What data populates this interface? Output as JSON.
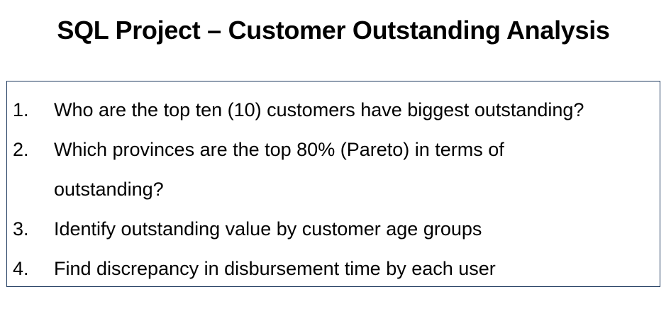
{
  "title": "SQL Project – Customer Outstanding Analysis",
  "questions": [
    {
      "number": "1.",
      "lines": [
        "Who are the top ten (10) customers have biggest outstanding?"
      ]
    },
    {
      "number": "2.",
      "lines": [
        "Which provinces are the top 80% (Pareto) in terms of",
        "outstanding?"
      ]
    },
    {
      "number": "3.",
      "lines": [
        "Identify outstanding value by customer age groups"
      ]
    },
    {
      "number": "4.",
      "lines": [
        "Find discrepancy in disbursement time by each user"
      ]
    }
  ],
  "colors": {
    "text": "#000000",
    "box_border": "#1f3a5f"
  }
}
